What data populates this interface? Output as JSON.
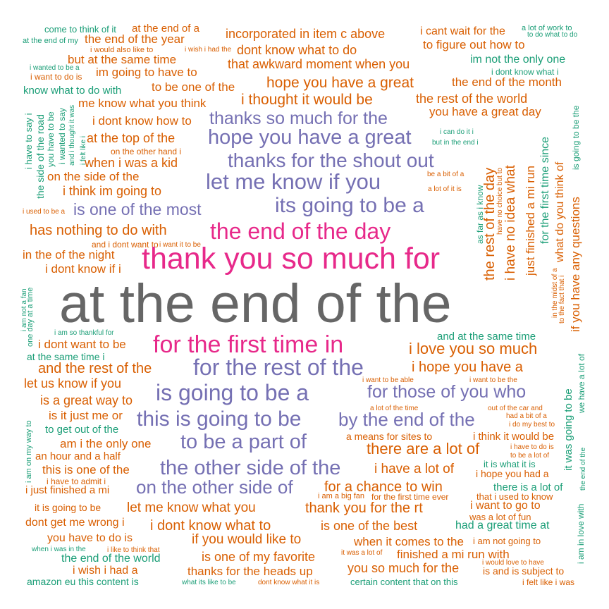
{
  "colors": {
    "teal": "#1b9e77",
    "orange": "#d95f02",
    "purple": "#7570b3",
    "pink": "#e7298a",
    "gray": "#666666"
  },
  "phrases": [
    "come to think of it",
    "at the end of a",
    "at the end of my",
    "the end of the year",
    "incorporated in item c above",
    "i cant wait for the",
    "a lot of work to",
    "to do what to do",
    "i would also like to",
    "i wish i had the",
    "dont know what to do",
    "to figure out how to",
    "but at the same time",
    "i wanted to be a",
    "that awkward moment when you",
    "im not the only one",
    "i want to do is",
    "im going to have to",
    "i dont know what i",
    "hope you have a great",
    "the end of the month",
    "to be one of the",
    "know what to do with",
    "i thought it would be",
    "the rest of the world",
    "me know what you think",
    "you have a great day",
    "thanks so much for the",
    "i dont know how to",
    "i can do it i",
    "hope you have a great",
    "at the top of the",
    "but in the end i",
    "on the other hand i",
    "thanks for the shout out",
    "when i was a kid",
    "be a bit of a",
    "on the side of the",
    "let me know if you",
    "i think im going to",
    "a lot of it is",
    "its going to be a",
    "i used to be a",
    "is one of the most",
    "has nothing to do with",
    "the end of the day",
    "and i dont want to",
    "i want it to be",
    "thank you so much for",
    "in the of the night",
    "i dont know if i",
    "at the end of the",
    "i am not a fan",
    "one day at a time",
    "i am so thankful for",
    "i dont want to be",
    "for the first time in",
    "and at the same time",
    "at the same time i",
    "i love you so much",
    "and the rest of the",
    "for the rest of the",
    "i hope you have a",
    "let us know if you",
    "i want to be able",
    "i want to be the",
    "is going to be a",
    "for those of you who",
    "is a great way to",
    "a lot of the time",
    "out of the car and",
    "had a bit of a",
    "is it just me or",
    "this is going to be",
    "by the end of the",
    "i do my best to",
    "to get out of the",
    "a means for sites to",
    "i think it would be",
    "am i the only one",
    "to be a part of",
    "there are a lot of",
    "i have to do is",
    "to be a lot of",
    "an hour and a half",
    "it is what it is",
    "this is one of the",
    "the other side of the",
    "i have a lot of",
    "i hope you had a",
    "i have to admit i",
    "i just finished a mi",
    "on the other side of",
    "for a chance to win",
    "there is a lot of",
    "i am a big fan",
    "for the first time ever",
    "that i used to know",
    "it is going to be",
    "let me know what you",
    "thank you for the rt",
    "i want to go to",
    "was a lot of fun",
    "dont get me wrong i",
    "i dont know what to",
    "is one of the best",
    "had a great time at",
    "you have to do is",
    "if you would like to",
    "when it comes to the",
    "i am not going to",
    "when i was in the",
    "i like to think that",
    "it was a lot of",
    "finished a mi run with",
    "the end of the world",
    "is one of my favorite",
    "i would love to have",
    "i wish i had a",
    "thanks for the heads up",
    "you so much for the",
    "is and is subject to",
    "amazon eu this content is",
    "what its like to be",
    "dont know what it is",
    "certain content that on this",
    "i felt like i was",
    "i have to say i",
    "the side of the road",
    "you have to be",
    "i wanted to say",
    "and i thought it was",
    "i felt like i",
    "the rest of the day",
    "as far as i know",
    "have no choice but to",
    "i have no idea what",
    "just finished a mi run",
    "for the first time since",
    "what do you think of",
    "is going to be the",
    "if you have any questions",
    "in the midst of a",
    "to the fact that i",
    "i am on my way to",
    "it was going to be",
    "we have a lot of",
    "the end of the",
    "i am in love with"
  ]
}
